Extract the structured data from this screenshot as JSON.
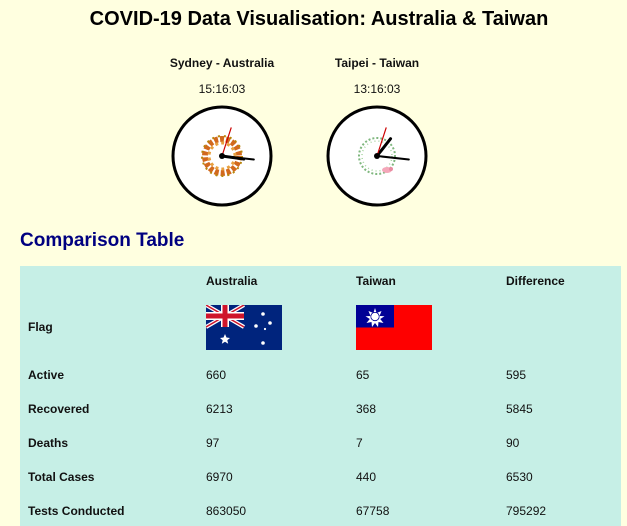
{
  "page": {
    "title": "COVID-19 Data Visualisation: Australia & Taiwan"
  },
  "clocks": [
    {
      "city": "Sydney - Australia",
      "time": "15:16:03",
      "hour": 15,
      "minute": 16,
      "second": 3,
      "decoration": "autumn-leaf-wreath-icon"
    },
    {
      "city": "Taipei - Taiwan",
      "time": "13:16:03",
      "hour": 13,
      "minute": 16,
      "second": 3,
      "decoration": "floral-wreath-icon"
    }
  ],
  "comparison": {
    "heading": "Comparison Table",
    "columns": [
      "",
      "Australia",
      "Taiwan",
      "Difference"
    ],
    "flag_label": "Flag",
    "rows": [
      {
        "label": "Active",
        "australia": "660",
        "taiwan": "65",
        "difference": "595"
      },
      {
        "label": "Recovered",
        "australia": "6213",
        "taiwan": "368",
        "difference": "5845"
      },
      {
        "label": "Deaths",
        "australia": "97",
        "taiwan": "7",
        "difference": "90"
      },
      {
        "label": "Total Cases",
        "australia": "6970",
        "taiwan": "440",
        "difference": "6530"
      },
      {
        "label": "Tests Conducted",
        "australia": "863050",
        "taiwan": "67758",
        "difference": "795292"
      }
    ]
  },
  "colors": {
    "background": "#ffffe0",
    "table_background": "#c6efe6",
    "heading": "#000080",
    "second_hand": "#cc0000"
  }
}
